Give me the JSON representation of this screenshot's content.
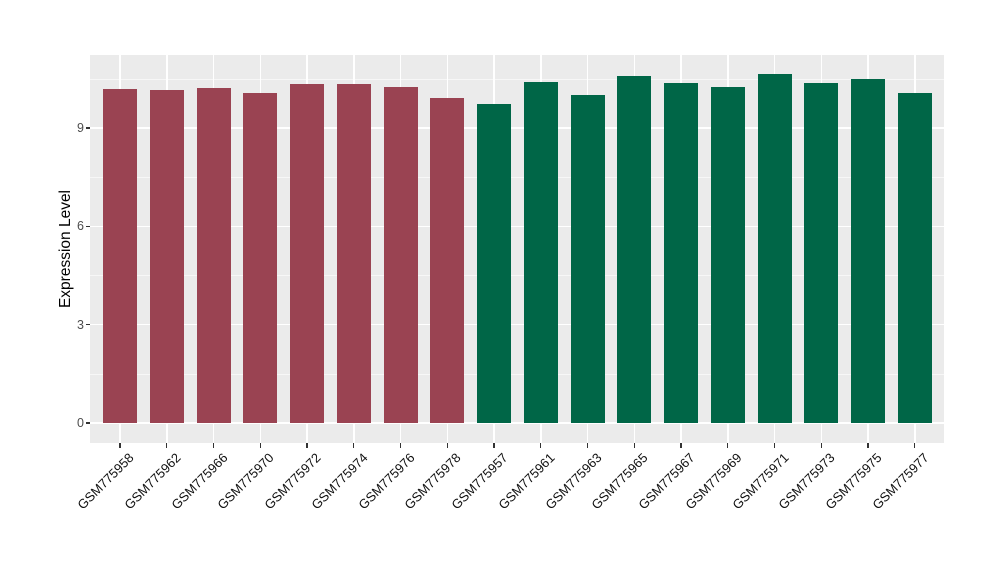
{
  "chart_data": {
    "type": "bar",
    "title": "",
    "xlabel": "",
    "ylabel": "Expression Level",
    "ylim": [
      0,
      11.22
    ],
    "yticks": [
      0,
      3,
      6,
      9
    ],
    "ytick_labels": [
      "0",
      "3",
      "6",
      "9"
    ],
    "minor_yticks": [
      1.5,
      4.5,
      7.5,
      10.5
    ],
    "grid": "major-and-minor-horizontal, major-vertical-at-category-centers",
    "legend_position": "none",
    "panel_background": "#EBEBEB",
    "grid_color": "#FFFFFF",
    "colors": {
      "group1": "#9A4352",
      "group2": "#006647"
    },
    "categories": [
      "GSM775958",
      "GSM775962",
      "GSM775966",
      "GSM775970",
      "GSM775972",
      "GSM775974",
      "GSM775976",
      "GSM775978",
      "GSM775957",
      "GSM775961",
      "GSM775963",
      "GSM775965",
      "GSM775967",
      "GSM775969",
      "GSM775971",
      "GSM775973",
      "GSM775975",
      "GSM775977"
    ],
    "values": [
      10.19,
      10.15,
      10.23,
      10.08,
      10.35,
      10.33,
      10.25,
      9.91,
      9.72,
      10.4,
      10.01,
      10.59,
      10.36,
      10.24,
      10.65,
      10.37,
      10.5,
      10.08
    ],
    "bars": [
      {
        "label": "GSM775958",
        "value": 10.19,
        "color_key": "group1"
      },
      {
        "label": "GSM775962",
        "value": 10.15,
        "color_key": "group1"
      },
      {
        "label": "GSM775966",
        "value": 10.23,
        "color_key": "group1"
      },
      {
        "label": "GSM775970",
        "value": 10.08,
        "color_key": "group1"
      },
      {
        "label": "GSM775972",
        "value": 10.35,
        "color_key": "group1"
      },
      {
        "label": "GSM775974",
        "value": 10.33,
        "color_key": "group1"
      },
      {
        "label": "GSM775976",
        "value": 10.25,
        "color_key": "group1"
      },
      {
        "label": "GSM775978",
        "value": 9.91,
        "color_key": "group1"
      },
      {
        "label": "GSM775957",
        "value": 9.72,
        "color_key": "group2"
      },
      {
        "label": "GSM775961",
        "value": 10.4,
        "color_key": "group2"
      },
      {
        "label": "GSM775963",
        "value": 10.01,
        "color_key": "group2"
      },
      {
        "label": "GSM775965",
        "value": 10.59,
        "color_key": "group2"
      },
      {
        "label": "GSM775967",
        "value": 10.36,
        "color_key": "group2"
      },
      {
        "label": "GSM775969",
        "value": 10.24,
        "color_key": "group2"
      },
      {
        "label": "GSM775971",
        "value": 10.65,
        "color_key": "group2"
      },
      {
        "label": "GSM775973",
        "value": 10.37,
        "color_key": "group2"
      },
      {
        "label": "GSM775975",
        "value": 10.5,
        "color_key": "group2"
      },
      {
        "label": "GSM775977",
        "value": 10.08,
        "color_key": "group2"
      }
    ]
  }
}
